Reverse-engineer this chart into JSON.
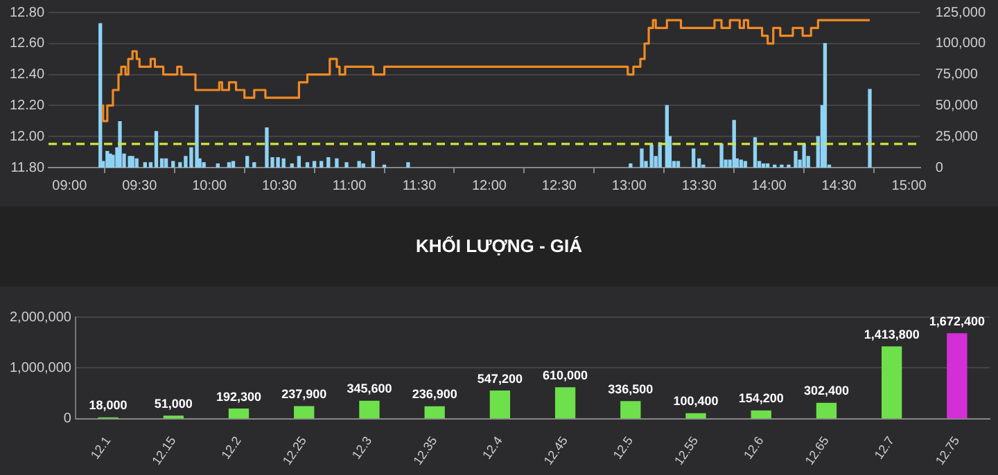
{
  "chart_data": [
    {
      "type": "step",
      "xlim": [
        8.85,
        15.08
      ],
      "xticks": [
        {
          "value": 9,
          "label": "09:00"
        },
        {
          "value": 9.5,
          "label": "09:30"
        },
        {
          "value": 10,
          "label": "10:00"
        },
        {
          "value": 10.5,
          "label": "10:30"
        },
        {
          "value": 11,
          "label": "11:00"
        },
        {
          "value": 11.5,
          "label": "11:30"
        },
        {
          "value": 12,
          "label": "12:00"
        },
        {
          "value": 12.5,
          "label": "12:30"
        },
        {
          "value": 13,
          "label": "13:00"
        },
        {
          "value": 13.5,
          "label": "13:30"
        },
        {
          "value": 14,
          "label": "14:00"
        },
        {
          "value": 14.5,
          "label": "14:30"
        },
        {
          "value": 15,
          "label": "15:00"
        }
      ],
      "ylim": [
        11.8,
        12.8
      ],
      "yticks": [
        {
          "value": 11.8,
          "label": "11.80"
        },
        {
          "value": 12,
          "label": "12.00"
        },
        {
          "value": 12.2,
          "label": "12.20"
        },
        {
          "value": 12.4,
          "label": "12.40"
        },
        {
          "value": 12.6,
          "label": "12.60"
        },
        {
          "value": 12.8,
          "label": "12.80"
        }
      ],
      "y2lim": [
        0,
        125000
      ],
      "y2ticks": [
        0,
        {
          "value": 25000,
          "label": "25,000"
        },
        {
          "value": 50000,
          "label": "50,000"
        },
        {
          "value": 75000,
          "label": "75,000"
        },
        {
          "value": 100000,
          "label": "100,000"
        },
        {
          "value": 125000,
          "label": "125,000"
        }
      ],
      "grid": "y",
      "ref_lines": [
        {
          "axis": "y2",
          "value": 19000,
          "color": "#d8e43a",
          "line_style": "dashed"
        }
      ],
      "series": [
        {
          "type": "bar",
          "axis": "y2",
          "color": "#8fd3f4",
          "x": [
            9.22,
            9.24,
            9.27,
            9.29,
            9.31,
            9.34,
            9.36,
            9.39,
            9.43,
            9.45,
            9.48,
            9.54,
            9.58,
            9.62,
            9.66,
            9.69,
            9.74,
            9.79,
            9.83,
            9.87,
            9.91,
            9.93,
            9.96,
            10.06,
            10.14,
            10.17,
            10.27,
            10.32,
            10.41,
            10.45,
            10.49,
            10.53,
            10.59,
            10.64,
            10.7,
            10.75,
            10.8,
            10.85,
            10.91,
            10.98,
            11.07,
            11.1,
            11.17,
            11.25,
            11.42,
            13.01,
            13.09,
            13.12,
            13.16,
            13.19,
            13.22,
            13.27,
            13.29,
            13.32,
            13.35,
            13.46,
            13.5,
            13.53,
            13.66,
            13.69,
            13.72,
            13.75,
            13.77,
            13.8,
            13.83,
            13.9,
            13.93,
            13.96,
            13.99,
            14.04,
            14.09,
            14.14,
            14.19,
            14.22,
            14.25,
            14.28,
            14.35,
            14.38,
            14.4,
            14.43,
            14.72
          ],
          "values": [
            116000,
            5000,
            13000,
            11000,
            10000,
            16000,
            37000,
            11000,
            9000,
            9000,
            7000,
            4000,
            4000,
            29000,
            7000,
            7000,
            5000,
            4000,
            9000,
            16000,
            50000,
            7000,
            4000,
            3000,
            4000,
            5000,
            9000,
            4000,
            32000,
            8000,
            8000,
            7000,
            3000,
            9000,
            4000,
            5000,
            5000,
            8000,
            7000,
            4000,
            5000,
            3000,
            13000,
            2000,
            4000,
            3000,
            15000,
            5000,
            18000,
            9000,
            20000,
            50000,
            25000,
            5000,
            5000,
            15000,
            7000,
            2000,
            19000,
            6000,
            6000,
            38000,
            7000,
            6000,
            5000,
            24000,
            5000,
            3000,
            3000,
            2000,
            2000,
            2000,
            13000,
            6000,
            19000,
            9000,
            25000,
            50000,
            100000,
            2000,
            63000
          ]
        },
        {
          "color": "#f08a24",
          "x": [
            9.23,
            9.24,
            9.27,
            9.31,
            9.35,
            9.37,
            9.4,
            9.42,
            9.45,
            9.48,
            9.5,
            9.58,
            9.61,
            9.67,
            9.77,
            9.8,
            9.9,
            10.07,
            10.09,
            10.14,
            10.19,
            10.25,
            10.32,
            10.4,
            10.64,
            10.7,
            10.86,
            10.91,
            10.93,
            10.97,
            11.15,
            11.17,
            11.25,
            12.98,
            12.99,
            13.03,
            13.08,
            13.11,
            13.14,
            13.17,
            13.19,
            13.27,
            13.37,
            13.61,
            13.66,
            13.72,
            13.79,
            13.82,
            13.85,
            13.95,
            13.99,
            14.03,
            14.08,
            14.17,
            14.24,
            14.3,
            14.35,
            14.72
          ],
          "values": [
            12.2,
            12.1,
            12.2,
            12.3,
            12.4,
            12.45,
            12.4,
            12.5,
            12.55,
            12.5,
            12.45,
            12.5,
            12.45,
            12.4,
            12.45,
            12.4,
            12.3,
            12.35,
            12.3,
            12.35,
            12.3,
            12.25,
            12.3,
            12.25,
            12.35,
            12.4,
            12.5,
            12.45,
            12.4,
            12.45,
            12.45,
            12.4,
            12.45,
            12.45,
            12.4,
            12.45,
            12.5,
            12.6,
            12.7,
            12.75,
            12.7,
            12.75,
            12.7,
            12.75,
            12.7,
            12.75,
            12.7,
            12.75,
            12.7,
            12.65,
            12.6,
            12.7,
            12.65,
            12.7,
            12.65,
            12.7,
            12.75,
            12.75
          ]
        }
      ]
    },
    {
      "type": "bar",
      "title": "KHỐI LƯỢNG - GIÁ",
      "categories": [
        "12.1",
        "12.15",
        "12.2",
        "12.25",
        "12.3",
        "12.35",
        "12.4",
        "12.45",
        "12.5",
        "12.55",
        "12.6",
        "12.65",
        "12.7",
        "12.75"
      ],
      "values": [
        18000,
        51000,
        192300,
        237900,
        345600,
        236900,
        547200,
        610000,
        336500,
        100400,
        154200,
        302400,
        1413800,
        1672400
      ],
      "colors": [
        "#6ee04c",
        "#6ee04c",
        "#6ee04c",
        "#6ee04c",
        "#6ee04c",
        "#6ee04c",
        "#6ee04c",
        "#6ee04c",
        "#6ee04c",
        "#6ee04c",
        "#6ee04c",
        "#6ee04c",
        "#6ee04c",
        "#d22fd6"
      ],
      "ylim": [
        0,
        2000000
      ],
      "yticks": [
        0,
        {
          "value": 1000000,
          "label": "1,000,000"
        },
        {
          "value": 2000000,
          "label": "2,000,000"
        }
      ],
      "value_labels": [
        "18,000",
        "51,000",
        "192,300",
        "237,900",
        "345,600",
        "236,900",
        "547,200",
        "610,000",
        "336,500",
        "100,400",
        "154,200",
        "302,400",
        "1,413,800",
        "1,672,400"
      ],
      "grid": "y"
    }
  ]
}
